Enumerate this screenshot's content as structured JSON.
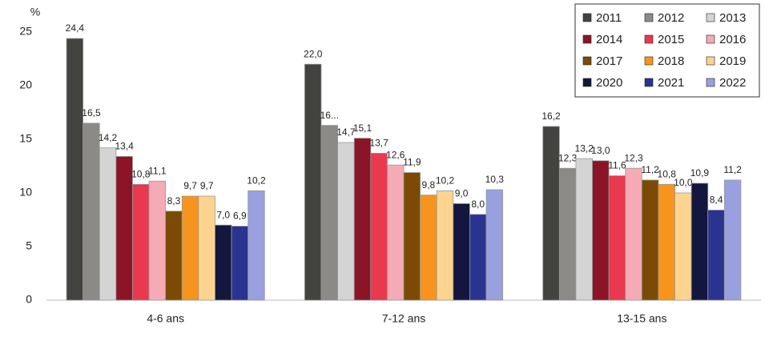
{
  "chart_data": {
    "type": "bar",
    "y_unit_label": "%",
    "categories": [
      "4-6 ans",
      "7-12 ans",
      "13-15 ans"
    ],
    "ylim": [
      0,
      25
    ],
    "yticks": [
      0,
      5,
      10,
      15,
      20,
      25
    ],
    "grid": false,
    "legend_position": "top-right",
    "series": [
      {
        "name": "2011",
        "color": "#43443f",
        "values": [
          24.4,
          22.0,
          16.2
        ],
        "value_labels": [
          "24,4",
          "22,0",
          "16,2"
        ]
      },
      {
        "name": "2012",
        "color": "#8c8a86",
        "values": [
          16.5,
          16.3,
          12.3
        ],
        "value_labels": [
          "16,5",
          "16...",
          "12,3"
        ]
      },
      {
        "name": "2013",
        "color": "#d4d4d4",
        "values": [
          14.2,
          14.7,
          13.2
        ],
        "value_labels": [
          "14,2",
          "14,7",
          "13,2"
        ]
      },
      {
        "name": "2014",
        "color": "#8b1526",
        "values": [
          13.4,
          15.1,
          13.0
        ],
        "value_labels": [
          "13,4",
          "15,1",
          "13,0"
        ]
      },
      {
        "name": "2015",
        "color": "#e8394f",
        "values": [
          10.8,
          13.7,
          11.6
        ],
        "value_labels": [
          "10,8",
          "13,7",
          "11,6"
        ]
      },
      {
        "name": "2016",
        "color": "#f4abb5",
        "values": [
          11.1,
          12.6,
          12.3
        ],
        "value_labels": [
          "11,1",
          "12,6",
          "12,3"
        ]
      },
      {
        "name": "2017",
        "color": "#7b4b05",
        "values": [
          8.3,
          11.9,
          11.2
        ],
        "value_labels": [
          "8,3",
          "11,9",
          "11,2"
        ]
      },
      {
        "name": "2018",
        "color": "#f7941d",
        "values": [
          9.7,
          9.8,
          10.8
        ],
        "value_labels": [
          "9,7",
          "9,8",
          "10,8"
        ]
      },
      {
        "name": "2019",
        "color": "#fdd48f",
        "values": [
          9.7,
          10.2,
          10.0
        ],
        "value_labels": [
          "9,7",
          "10,2",
          "10,0"
        ]
      },
      {
        "name": "2020",
        "color": "#13173d",
        "values": [
          7.0,
          9.0,
          10.9
        ],
        "value_labels": [
          "7,0",
          "9,0",
          "10,9"
        ]
      },
      {
        "name": "2021",
        "color": "#2a3490",
        "values": [
          6.9,
          8.0,
          8.4
        ],
        "value_labels": [
          "6,9",
          "8,0",
          "8,4"
        ]
      },
      {
        "name": "2022",
        "color": "#98a0e0",
        "values": [
          10.2,
          10.3,
          11.2
        ],
        "value_labels": [
          "10,2",
          "10,3",
          "11,2"
        ]
      }
    ]
  }
}
